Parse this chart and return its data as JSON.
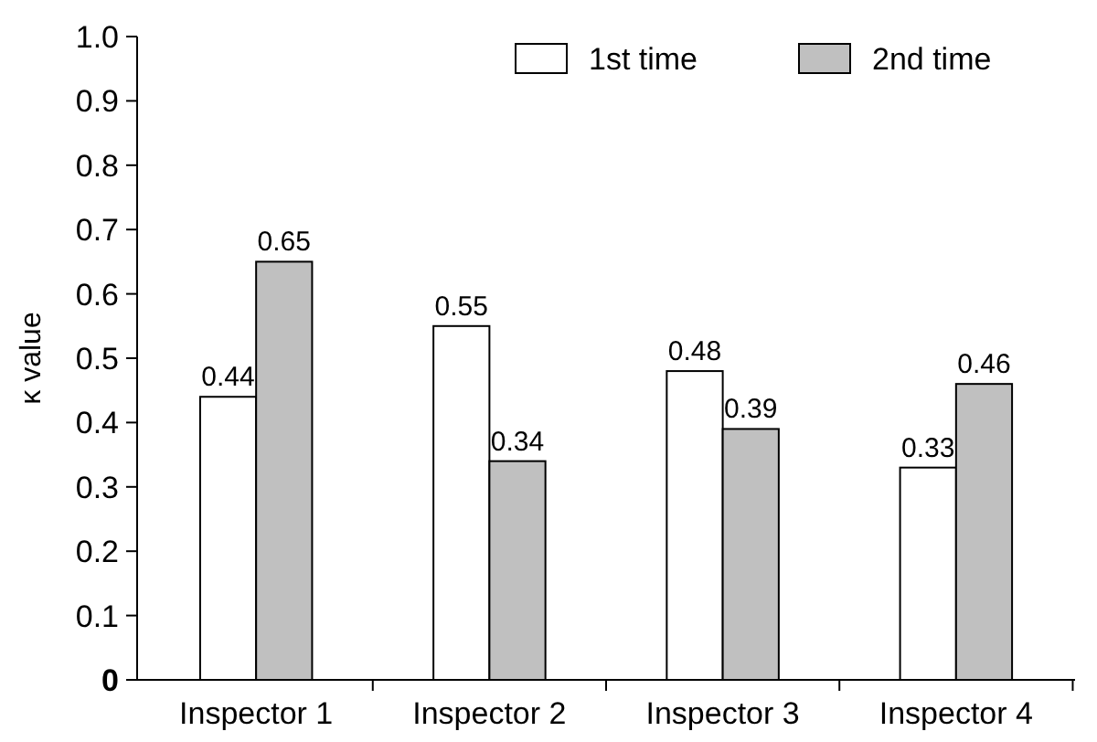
{
  "chart_data": {
    "type": "bar",
    "ylabel": "κ value",
    "categories": [
      "Inspector 1",
      "Inspector 2",
      "Inspector 3",
      "Inspector 4"
    ],
    "series": [
      {
        "name": "1st time",
        "color": "#ffffff",
        "values": [
          0.44,
          0.55,
          0.48,
          0.33
        ]
      },
      {
        "name": "2nd time",
        "color": "#c0c0c0",
        "values": [
          0.65,
          0.34,
          0.39,
          0.46
        ]
      }
    ],
    "ylim": [
      0,
      1
    ],
    "yticks": [
      0,
      0.1,
      0.2,
      0.3,
      0.4,
      0.5,
      0.6,
      0.7,
      0.8,
      0.9,
      {
        "value": 1,
        "label": "1.0"
      }
    ],
    "grid": false,
    "legend": "top right",
    "data_labels": true
  }
}
